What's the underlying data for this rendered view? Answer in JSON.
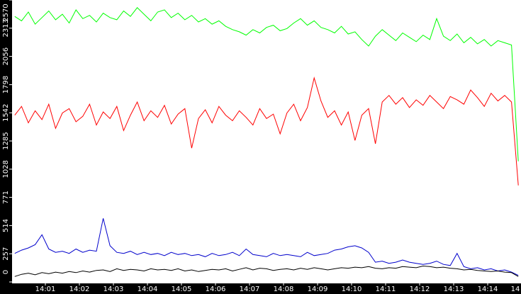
{
  "chart_data": {
    "type": "line",
    "x": [
      0.1,
      0.3,
      0.5,
      0.7,
      0.9,
      1.1,
      1.3,
      1.5,
      1.7,
      1.9,
      2.1,
      2.3,
      2.5,
      2.7,
      2.9,
      3.1,
      3.3,
      3.5,
      3.7,
      3.9,
      4.1,
      4.3,
      4.5,
      4.7,
      4.9,
      5.1,
      5.3,
      5.5,
      5.7,
      5.9,
      6.1,
      6.3,
      6.5,
      6.7,
      6.9,
      7.1,
      7.3,
      7.5,
      7.7,
      7.9,
      8.1,
      8.3,
      8.5,
      8.7,
      8.9,
      9.1,
      9.3,
      9.5,
      9.7,
      9.9,
      10.1,
      10.3,
      10.5,
      10.7,
      10.9,
      11.1,
      11.3,
      11.5,
      11.7,
      11.9,
      12.1,
      12.3,
      12.5,
      12.7,
      12.9,
      13.1,
      13.3,
      13.5,
      13.7,
      13.9,
      14.1,
      14.3,
      14.5,
      14.7,
      14.9
    ],
    "series": [
      {
        "color": "#00ff00",
        "values": [
          2420,
          2380,
          2460,
          2350,
          2410,
          2470,
          2390,
          2440,
          2360,
          2480,
          2400,
          2430,
          2370,
          2450,
          2410,
          2390,
          2470,
          2420,
          2500,
          2440,
          2380,
          2460,
          2480,
          2410,
          2450,
          2390,
          2430,
          2370,
          2400,
          2350,
          2380,
          2330,
          2300,
          2280,
          2250,
          2300,
          2270,
          2320,
          2340,
          2290,
          2310,
          2360,
          2400,
          2340,
          2380,
          2320,
          2300,
          2270,
          2330,
          2260,
          2280,
          2210,
          2150,
          2240,
          2300,
          2250,
          2200,
          2270,
          2230,
          2190,
          2250,
          2210,
          2400,
          2240,
          2200,
          2260,
          2180,
          2230,
          2170,
          2210,
          2150,
          2200,
          2180,
          2160,
          1100
        ]
      },
      {
        "color": "#ff0000",
        "values": [
          1520,
          1600,
          1450,
          1560,
          1480,
          1620,
          1400,
          1540,
          1580,
          1460,
          1510,
          1620,
          1430,
          1550,
          1490,
          1600,
          1380,
          1520,
          1640,
          1470,
          1560,
          1500,
          1610,
          1440,
          1530,
          1580,
          1220,
          1490,
          1570,
          1450,
          1600,
          1520,
          1470,
          1560,
          1500,
          1430,
          1580,
          1490,
          1530,
          1350,
          1540,
          1620,
          1470,
          1590,
          1860,
          1650,
          1500,
          1560,
          1430,
          1550,
          1290,
          1520,
          1580,
          1260,
          1640,
          1700,
          1620,
          1680,
          1590,
          1660,
          1610,
          1700,
          1640,
          1580,
          1690,
          1660,
          1620,
          1750,
          1680,
          1600,
          1720,
          1650,
          1700,
          1640,
          880
        ]
      },
      {
        "color": "#0000cc",
        "values": [
          260,
          290,
          310,
          340,
          430,
          300,
          270,
          280,
          260,
          300,
          270,
          290,
          280,
          580,
          330,
          270,
          260,
          280,
          250,
          270,
          250,
          260,
          240,
          270,
          250,
          260,
          240,
          250,
          230,
          260,
          240,
          250,
          270,
          240,
          300,
          250,
          240,
          230,
          260,
          240,
          250,
          240,
          230,
          270,
          240,
          250,
          260,
          290,
          300,
          320,
          330,
          310,
          270,
          180,
          190,
          170,
          180,
          200,
          180,
          170,
          160,
          170,
          190,
          160,
          150,
          260,
          140,
          120,
          130,
          110,
          120,
          100,
          110,
          90,
          60
        ]
      },
      {
        "color": "#000000",
        "values": [
          50,
          70,
          80,
          65,
          85,
          75,
          90,
          80,
          95,
          85,
          100,
          90,
          105,
          110,
          95,
          120,
          105,
          115,
          110,
          100,
          120,
          110,
          115,
          105,
          120,
          100,
          110,
          95,
          105,
          115,
          110,
          120,
          100,
          115,
          130,
          110,
          125,
          120,
          105,
          115,
          120,
          110,
          125,
          115,
          130,
          120,
          110,
          120,
          130,
          125,
          135,
          130,
          140,
          125,
          120,
          130,
          125,
          140,
          135,
          130,
          145,
          140,
          130,
          135,
          125,
          120,
          110,
          115,
          105,
          100,
          95,
          100,
          90,
          85,
          50
        ]
      }
    ],
    "xlim": [
      0,
      15
    ],
    "xticks": [
      {
        "value": 1,
        "label": "14:01"
      },
      {
        "value": 2,
        "label": "14:02"
      },
      {
        "value": 3,
        "label": "14:03"
      },
      {
        "value": 4,
        "label": "14:04"
      },
      {
        "value": 5,
        "label": "14:05"
      },
      {
        "value": 6,
        "label": "14:06"
      },
      {
        "value": 7,
        "label": "14:07"
      },
      {
        "value": 8,
        "label": "14:08"
      },
      {
        "value": 9,
        "label": "14:09"
      },
      {
        "value": 10,
        "label": "14:10"
      },
      {
        "value": 11,
        "label": "14:11"
      },
      {
        "value": 12,
        "label": "14:12"
      },
      {
        "value": 13,
        "label": "14:13"
      },
      {
        "value": 14,
        "label": "14:14"
      },
      {
        "value": 15,
        "label": "14"
      }
    ],
    "ylim": [
      0,
      2570
    ],
    "yticks": [
      0,
      257,
      514,
      771,
      1028,
      1285,
      1542,
      1798,
      2056,
      2313,
      2570
    ]
  }
}
